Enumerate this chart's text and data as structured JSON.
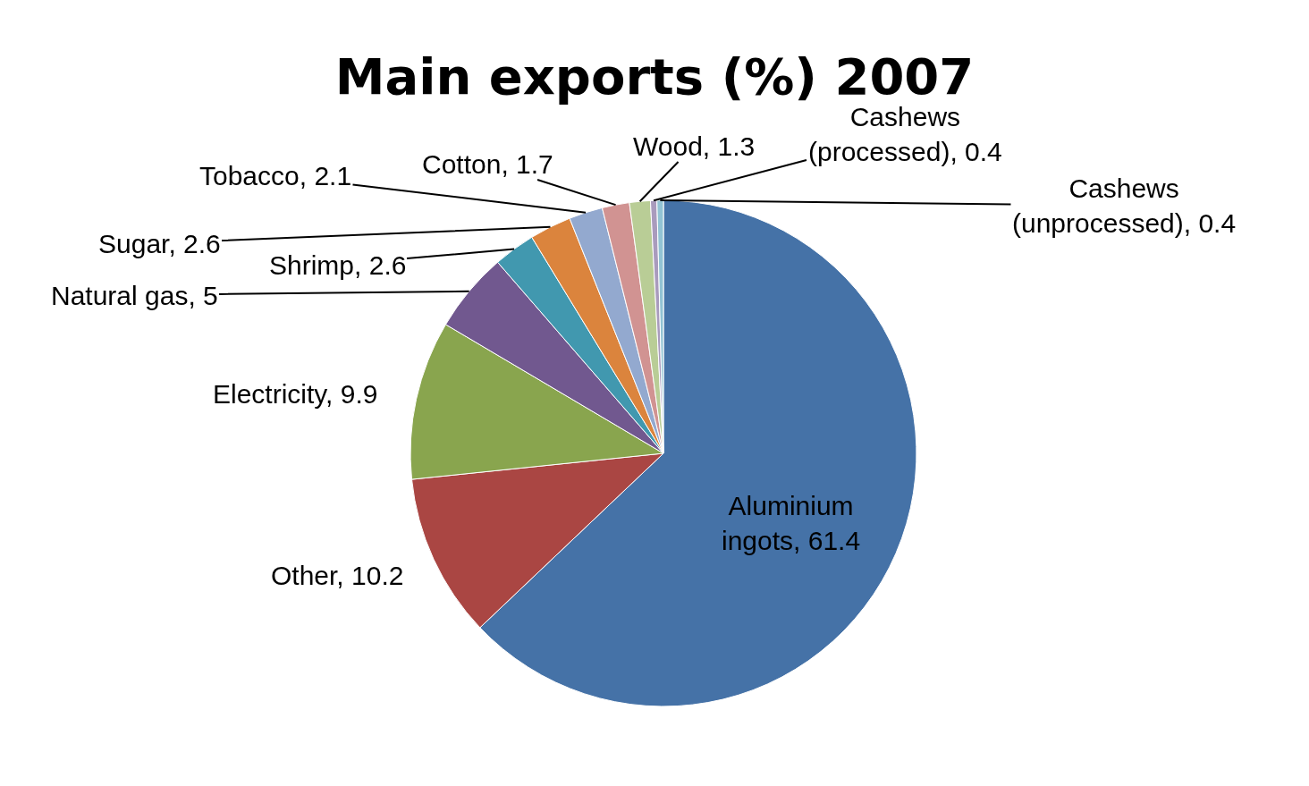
{
  "chart_data": {
    "type": "pie",
    "title": "Main exports (%) 2007",
    "categories": [
      "Aluminium ingots",
      "Other",
      "Electricity",
      "Natural gas",
      "Shrimp",
      "Sugar",
      "Tobacco",
      "Cotton",
      "Wood",
      "Cashews (processed)",
      "Cashews (unprocessed)"
    ],
    "values": [
      61.4,
      10.2,
      9.9,
      5,
      2.6,
      2.6,
      2.1,
      1.7,
      1.3,
      0.4,
      0.4
    ],
    "colors": [
      "#4572a7",
      "#aa4643",
      "#89a54e",
      "#71588f",
      "#4198af",
      "#db843d",
      "#93a9cf",
      "#d19392",
      "#b9cd96",
      "#a99bbd",
      "#92c3d4"
    ],
    "value_labels": [
      "61.4",
      "10.2",
      "9.9",
      "5",
      "2.6",
      "2.6",
      "2.1",
      "1.7",
      "1.3",
      "0.4",
      "0.4"
    ],
    "legend": false
  }
}
